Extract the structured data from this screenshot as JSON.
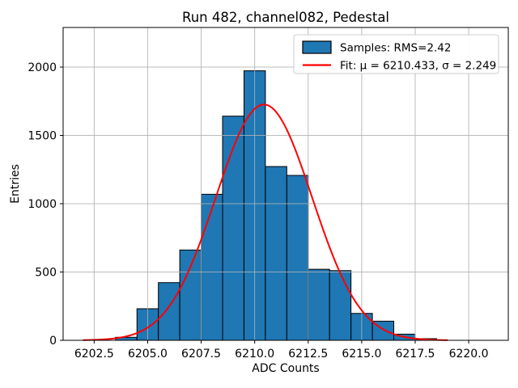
{
  "title": "Run 482, channel082, Pedestal",
  "axes": {
    "xlabel": "ADC Counts",
    "ylabel": "Entries",
    "x_tick_labels": [
      "6202.5",
      "6205.0",
      "6207.5",
      "6210.0",
      "6212.5",
      "6215.0",
      "6217.5",
      "6220.0"
    ],
    "x_tick_values": [
      6202.5,
      6205.0,
      6207.5,
      6210.0,
      6212.5,
      6215.0,
      6217.5,
      6220.0
    ],
    "y_tick_labels": [
      "0",
      "500",
      "1000",
      "1500",
      "2000"
    ],
    "y_tick_values": [
      0,
      500,
      1000,
      1500,
      2000
    ],
    "xlim": [
      6201.05,
      6221.85
    ],
    "ylim": [
      0,
      2290
    ],
    "grid": true
  },
  "legend": {
    "position": "upper right",
    "items": [
      {
        "label": "Samples: RMS=2.42",
        "handle": "patch",
        "color": "#1f77b4",
        "edge_color": "#000000"
      },
      {
        "label": "Fit: μ = 6210.433, σ = 2.249",
        "handle": "line",
        "color": "#ff0000"
      }
    ]
  },
  "chart_data": {
    "type": "bar",
    "subtype": "histogram-with-gaussian-fit",
    "title": "Run 482, channel082, Pedestal",
    "xlabel": "ADC Counts",
    "ylabel": "Entries",
    "bin_width": 1,
    "bin_centers": [
      6204,
      6205,
      6206,
      6207,
      6208,
      6209,
      6210,
      6211,
      6212,
      6213,
      6214,
      6215,
      6216,
      6217,
      6218
    ],
    "values": [
      22,
      231,
      422,
      661,
      1069,
      1641,
      1973,
      1272,
      1207,
      520,
      510,
      197,
      140,
      45,
      12
    ],
    "bar_color": "#1f77b4",
    "bar_edge_color": "#000000",
    "samples_rms": 2.42,
    "fit_curve": {
      "type": "gaussian",
      "mu": 6210.433,
      "sigma": 2.249,
      "amplitude": 1726,
      "x_start": 6202.0,
      "x_end": 6219.0,
      "color": "#ff0000"
    },
    "xlim": [
      6201.05,
      6221.85
    ],
    "ylim": [
      0,
      2290
    ],
    "grid_color": "#b0b0b0",
    "legend_position": "upper right"
  }
}
